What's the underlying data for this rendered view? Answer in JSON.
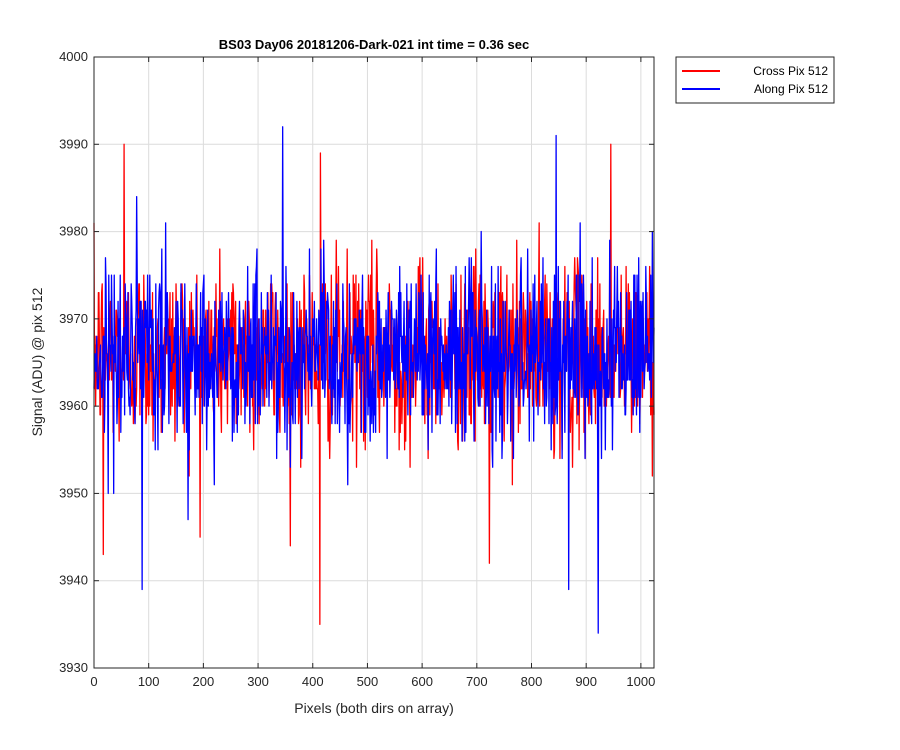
{
  "chart_data": {
    "type": "line",
    "title": "BS03 Day06 20181206-Dark-021 int time = 0.36 sec",
    "xlabel": "Pixels (both dirs on array)",
    "ylabel": "Signal (ADU) @ pix 512",
    "xlim": [
      0,
      1024
    ],
    "ylim": [
      3930,
      4000
    ],
    "xticks": [
      0,
      100,
      200,
      300,
      400,
      500,
      600,
      700,
      800,
      900,
      1000
    ],
    "yticks": [
      3930,
      3940,
      3950,
      3960,
      3970,
      3980,
      3990,
      4000
    ],
    "grid": true,
    "legend_position": "outside-top-right",
    "series": [
      {
        "name": "Cross Pix 512",
        "color": "#ff0000",
        "mean": 3966,
        "noise_amplitude": 7,
        "extremes": [
          [
            55,
            3990
          ],
          [
            413,
            3935
          ],
          [
            414,
            3989
          ],
          [
            945,
            3990
          ],
          [
            723,
            3942
          ],
          [
            17,
            3943
          ]
        ]
      },
      {
        "name": "Along Pix 512",
        "color": "#0000ff",
        "mean": 3966,
        "noise_amplitude": 7,
        "extremes": [
          [
            88,
            3939
          ],
          [
            345,
            3992
          ],
          [
            845,
            3991
          ],
          [
            922,
            3934
          ],
          [
            868,
            3939
          ]
        ]
      }
    ]
  }
}
